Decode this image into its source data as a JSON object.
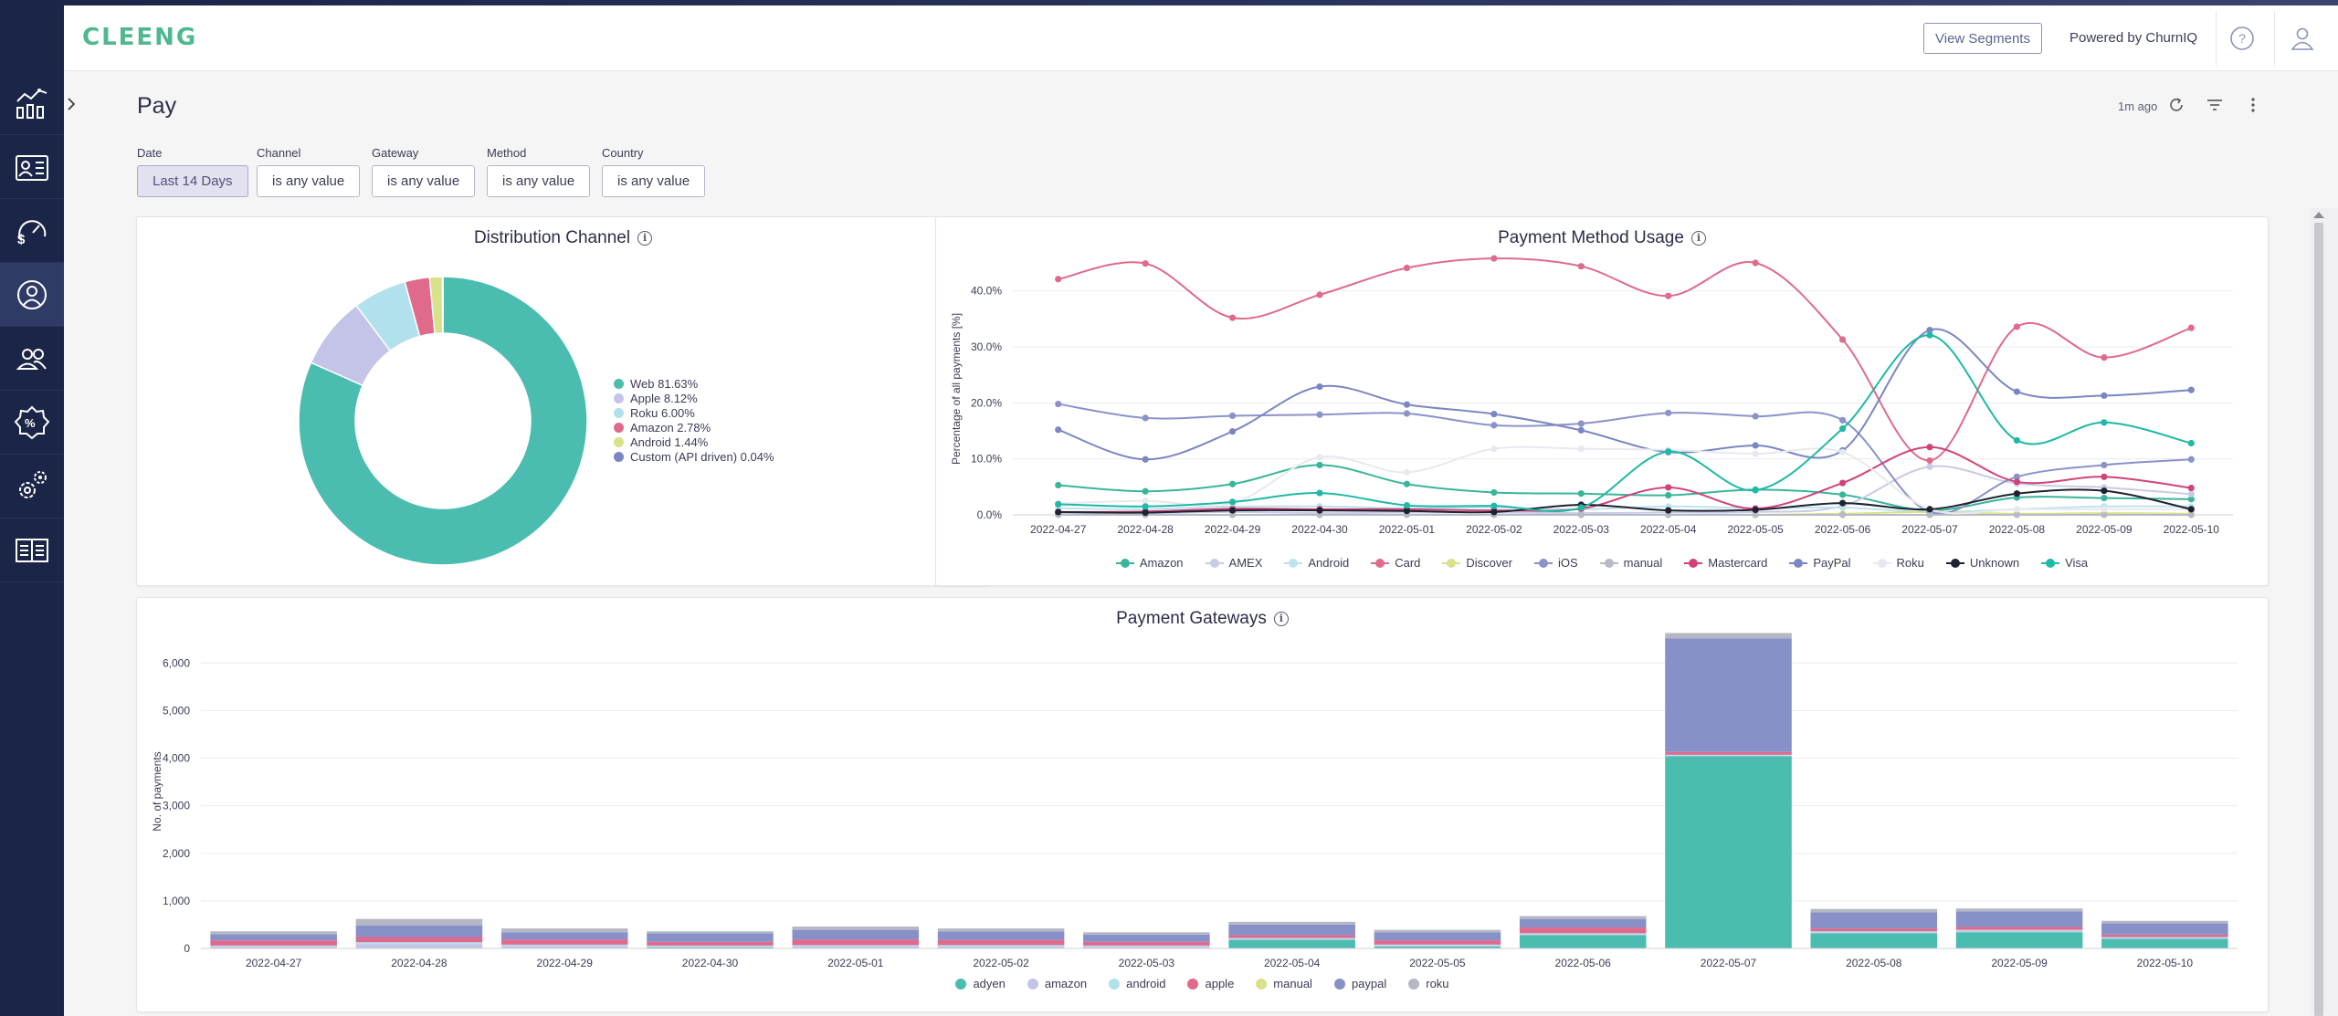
{
  "app": {
    "logo": "CLEENG",
    "view_segments": "View Segments",
    "powered_by": "Powered by ChurnIQ"
  },
  "sidebar": {
    "items": [
      {
        "icon": "analytics-chart-icon"
      },
      {
        "icon": "subscriber-card-icon"
      },
      {
        "icon": "revenue-gauge-icon"
      },
      {
        "icon": "churn-user-icon"
      },
      {
        "icon": "users-group-icon"
      },
      {
        "icon": "discount-badge-icon"
      },
      {
        "icon": "settings-gears-icon"
      },
      {
        "icon": "reports-book-icon"
      }
    ]
  },
  "page": {
    "title": "Pay",
    "updated": "1m ago"
  },
  "filters": [
    {
      "label": "Date",
      "value": "Last 14 Days"
    },
    {
      "label": "Channel",
      "value": "is any value"
    },
    {
      "label": "Gateway",
      "value": "is any value"
    },
    {
      "label": "Method",
      "value": "is any value"
    },
    {
      "label": "Country",
      "value": "is any value"
    }
  ],
  "colors": {
    "accent": "#4fb88f",
    "sidebar": "#1b2547"
  },
  "chart_data": [
    {
      "type": "pie",
      "title": "Distribution Channel",
      "legend_position": "right",
      "slices": [
        {
          "label": "Web 81.63%",
          "value": 81.63,
          "color": "#4bbdb0"
        },
        {
          "label": "Apple 8.12%",
          "value": 8.12,
          "color": "#c3c4e8"
        },
        {
          "label": "Roku 6.00%",
          "value": 6.0,
          "color": "#b1e1ed"
        },
        {
          "label": "Amazon 2.78%",
          "value": 2.78,
          "color": "#e06a8c"
        },
        {
          "label": "Android 1.44%",
          "value": 1.44,
          "color": "#d9e18a"
        },
        {
          "label": "Custom (API driven) 0.04%",
          "value": 0.04,
          "color": "#7b86c2"
        }
      ]
    },
    {
      "type": "line",
      "title": "Payment Method Usage",
      "ylabel": "Percentage of all payments [%]",
      "ylim": [
        0,
        45
      ],
      "y_ticks": [
        "0.0%",
        "10.0%",
        "20.0%",
        "30.0%",
        "40.0%"
      ],
      "y_tick_values": [
        0,
        10,
        20,
        30,
        40
      ],
      "legend_position": "bottom",
      "categories": [
        "2022-04-27",
        "2022-04-28",
        "2022-04-29",
        "2022-04-30",
        "2022-05-01",
        "2022-05-02",
        "2022-05-03",
        "2022-05-04",
        "2022-05-05",
        "2022-05-06",
        "2022-05-07",
        "2022-05-08",
        "2022-05-09",
        "2022-05-10"
      ],
      "series": [
        {
          "name": "Amazon",
          "color": "#3ab59a",
          "values": [
            5.3,
            4.2,
            5.5,
            8.9,
            5.5,
            4.0,
            3.8,
            3.5,
            4.5,
            3.6,
            0.8,
            3.1,
            3.0,
            2.8
          ]
        },
        {
          "name": "AMEX",
          "color": "#c9cbe5",
          "values": [
            0.3,
            0.3,
            0.5,
            0.3,
            0.4,
            0.4,
            0.3,
            0.4,
            0.5,
            1.6,
            8.6,
            5.6,
            4.9,
            3.7
          ]
        },
        {
          "name": "Android",
          "color": "#bfe3ee",
          "values": [
            1.2,
            1.0,
            1.5,
            1.5,
            1.2,
            1.3,
            1.0,
            1.5,
            1.2,
            1.3,
            0.5,
            1.0,
            1.5,
            1.5
          ]
        },
        {
          "name": "Card",
          "color": "#e06a8c",
          "values": [
            42.1,
            44.9,
            35.2,
            39.3,
            44.1,
            45.8,
            44.4,
            39.1,
            45.0,
            31.3,
            9.7,
            33.6,
            28.1,
            33.4
          ]
        },
        {
          "name": "Discover",
          "color": "#d9e18a",
          "values": [
            0.0,
            0.0,
            0.0,
            0.0,
            0.0,
            0.0,
            0.0,
            0.0,
            0.0,
            0.2,
            0.5,
            0.2,
            0.3,
            0.2
          ]
        },
        {
          "name": "iOS",
          "color": "#8a92c8",
          "values": [
            19.8,
            17.3,
            17.7,
            17.9,
            18.1,
            16.0,
            16.3,
            18.2,
            17.6,
            16.9,
            0.5,
            6.8,
            8.9,
            9.9
          ]
        },
        {
          "name": "manual",
          "color": "#b7bac4",
          "values": [
            0.0,
            0.0,
            0.0,
            0.0,
            0.0,
            0.0,
            0.0,
            0.0,
            0.0,
            0.0,
            0.0,
            0.0,
            0.0,
            0.0
          ]
        },
        {
          "name": "Mastercard",
          "color": "#d0437a",
          "values": [
            0.5,
            0.6,
            1.1,
            1.0,
            1.0,
            0.8,
            1.1,
            4.9,
            1.1,
            5.7,
            12.1,
            5.9,
            6.8,
            4.8
          ]
        },
        {
          "name": "PayPal",
          "color": "#7b86c2",
          "values": [
            15.2,
            9.9,
            14.9,
            22.9,
            19.7,
            18.0,
            15.1,
            11.2,
            12.4,
            11.5,
            33.0,
            22.0,
            21.3,
            22.3
          ]
        },
        {
          "name": "Roku",
          "color": "#e8e9ef",
          "values": [
            2.0,
            2.5,
            2.1,
            10.3,
            7.6,
            11.8,
            11.8,
            11.6,
            10.9,
            11.2,
            1.0,
            1.0,
            1.0,
            1.0
          ]
        },
        {
          "name": "Unknown",
          "color": "#1f2230",
          "values": [
            0.5,
            0.4,
            0.8,
            0.8,
            0.7,
            0.5,
            1.8,
            0.8,
            0.9,
            2.1,
            1.0,
            3.8,
            4.3,
            1.0
          ]
        },
        {
          "name": "Visa",
          "color": "#1fb9a5",
          "values": [
            1.9,
            1.5,
            2.3,
            3.9,
            1.7,
            1.6,
            1.3,
            11.3,
            4.4,
            15.4,
            32.1,
            13.3,
            16.5,
            12.8
          ]
        }
      ]
    },
    {
      "type": "bar",
      "stacked": true,
      "title": "Payment Gateways",
      "ylabel": "No. of payments",
      "ylim": [
        0,
        6600
      ],
      "y_ticks": [
        "0",
        "1,000",
        "2,000",
        "3,000",
        "4,000",
        "5,000",
        "6,000"
      ],
      "y_tick_values": [
        0,
        1000,
        2000,
        3000,
        4000,
        5000,
        6000
      ],
      "legend_position": "bottom",
      "categories": [
        "2022-04-27",
        "2022-04-28",
        "2022-04-29",
        "2022-04-30",
        "2022-05-01",
        "2022-05-02",
        "2022-05-03",
        "2022-05-04",
        "2022-05-05",
        "2022-05-06",
        "2022-05-07",
        "2022-05-08",
        "2022-05-09",
        "2022-05-10"
      ],
      "series": [
        {
          "name": "adyen",
          "color": "#4bbdb0",
          "values": [
            10,
            10,
            10,
            20,
            10,
            10,
            10,
            180,
            40,
            280,
            4040,
            320,
            340,
            200
          ]
        },
        {
          "name": "amazon",
          "color": "#c3c4e8",
          "values": [
            30,
            80,
            40,
            20,
            40,
            30,
            30,
            20,
            20,
            20,
            10,
            20,
            30,
            20
          ]
        },
        {
          "name": "android",
          "color": "#b1e1ed",
          "values": [
            20,
            40,
            30,
            20,
            20,
            30,
            20,
            20,
            20,
            20,
            20,
            20,
            20,
            20
          ]
        },
        {
          "name": "apple",
          "color": "#e06a8c",
          "values": [
            110,
            110,
            110,
            80,
            120,
            110,
            80,
            60,
            90,
            120,
            60,
            60,
            60,
            50
          ]
        },
        {
          "name": "manual",
          "color": "#d9e18a",
          "values": [
            0,
            0,
            0,
            0,
            0,
            0,
            0,
            0,
            0,
            0,
            0,
            0,
            0,
            0
          ]
        },
        {
          "name": "paypal",
          "color": "#8791c8",
          "values": [
            130,
            240,
            150,
            180,
            200,
            180,
            150,
            220,
            170,
            180,
            2390,
            340,
            330,
            240
          ]
        },
        {
          "name": "roku",
          "color": "#b4b7c4",
          "values": [
            60,
            140,
            80,
            40,
            70,
            60,
            50,
            60,
            50,
            60,
            110,
            70,
            60,
            50
          ]
        }
      ]
    }
  ]
}
